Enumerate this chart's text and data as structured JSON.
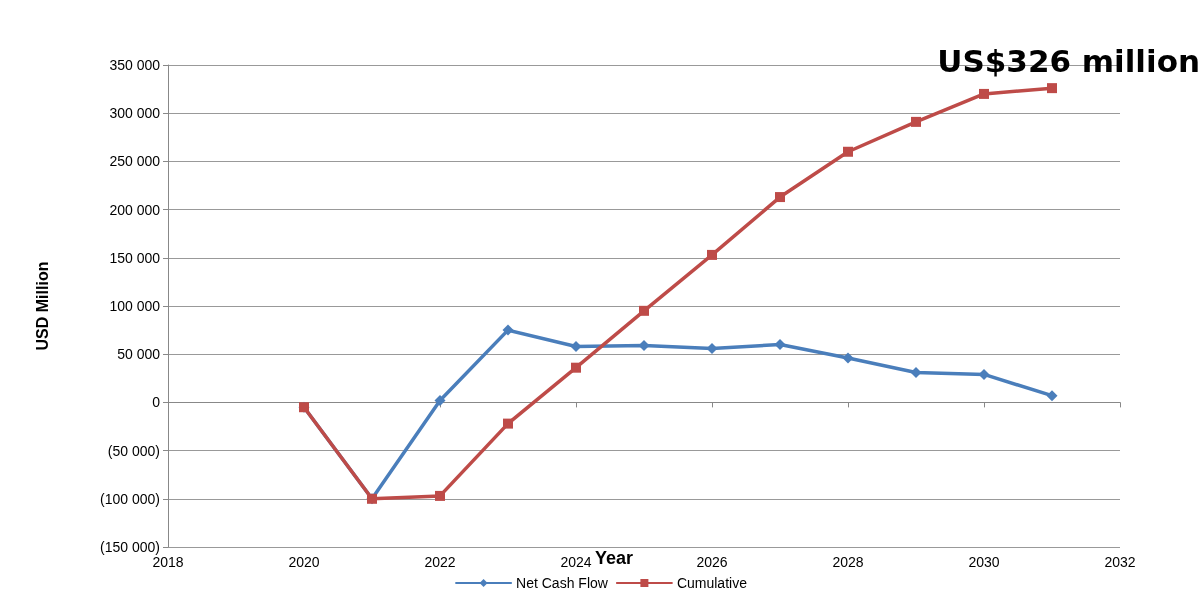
{
  "chart_data": {
    "type": "line",
    "xlabel": "Year",
    "ylabel": "USD Million",
    "x": [
      2020,
      2021,
      2022,
      2023,
      2024,
      2025,
      2026,
      2027,
      2028,
      2029,
      2030,
      2031
    ],
    "series": [
      {
        "name": "Net Cash Flow",
        "color": "#4a7ebb",
        "marker": "diamond",
        "values": [
          -5000,
          -100000,
          2000,
          75000,
          58000,
          59000,
          56000,
          60000,
          46000,
          31000,
          29000,
          7000
        ]
      },
      {
        "name": "Cumulative",
        "color": "#be4b48",
        "marker": "square",
        "values": [
          -5000,
          -100000,
          -97000,
          -22000,
          36000,
          95000,
          153000,
          213000,
          260000,
          291000,
          320000,
          326000
        ]
      }
    ],
    "xlim": [
      2018,
      2032
    ],
    "xticks": [
      2018,
      2020,
      2022,
      2024,
      2026,
      2028,
      2030,
      2032
    ],
    "ylim": [
      -150000,
      350000
    ],
    "yticks": [
      {
        "value": -150000,
        "label": "(150 000)"
      },
      {
        "value": -100000,
        "label": "(100 000)"
      },
      {
        "value": -50000,
        "label": "(50 000)"
      },
      {
        "value": 0,
        "label": "0"
      },
      {
        "value": 50000,
        "label": "50 000"
      },
      {
        "value": 100000,
        "label": "100 000"
      },
      {
        "value": 150000,
        "label": "150 000"
      },
      {
        "value": 200000,
        "label": "200 000"
      },
      {
        "value": 250000,
        "label": "250 000"
      },
      {
        "value": 300000,
        "label": "300 000"
      },
      {
        "value": 350000,
        "label": "350 000"
      }
    ],
    "grid": "y",
    "legend": "bottom",
    "line_style": "solid",
    "annotations": [
      {
        "text": "US$326 million",
        "x": 2031,
        "y": 326000
      }
    ]
  }
}
